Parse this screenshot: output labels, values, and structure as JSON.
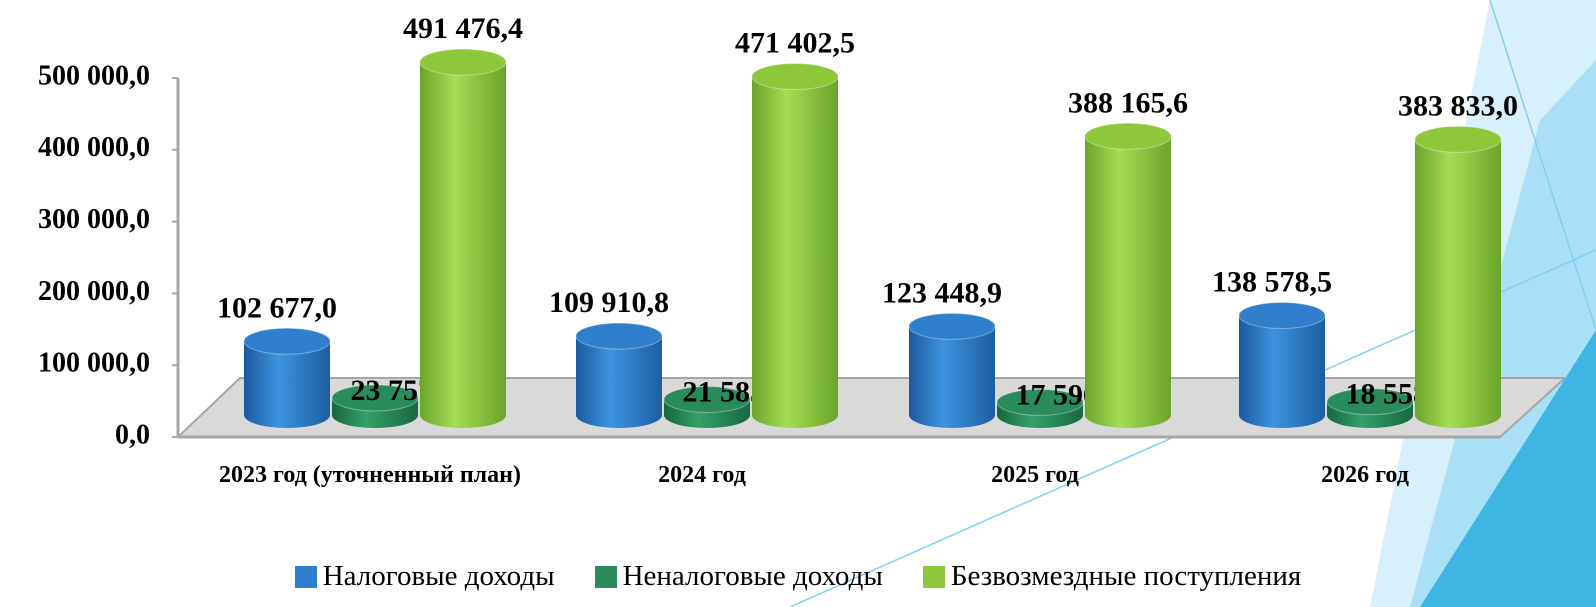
{
  "chart_data": {
    "type": "bar",
    "categories": [
      "2023 год (уточненный план)",
      "2024 год",
      "2025 год",
      "2026 год"
    ],
    "series": [
      {
        "name": "Налоговые доходы",
        "color": "#2f7fcc",
        "values": [
          102677.0,
          109910.8,
          123448.9,
          138578.5
        ],
        "value_labels": [
          "102 677,0",
          "109 910,8",
          "123 448,9",
          "138 578,5"
        ]
      },
      {
        "name": "Неналоговые доходы",
        "color": "#2a8c5c",
        "values": [
          23757.8,
          21585.4,
          17596.0,
          18558.8
        ],
        "value_labels": [
          "23 757,8",
          "21 585,4",
          "17 596,0",
          "18 558,8"
        ]
      },
      {
        "name": "Безвозмездные поступления",
        "color": "#8dc83c",
        "values": [
          491476.4,
          471402.5,
          388165.6,
          383833.0
        ],
        "value_labels": [
          "491 476,4",
          "471 402,5",
          "388 165,6",
          "383 833,0"
        ]
      }
    ],
    "ylim": [
      0,
      500000
    ],
    "yticks": [
      {
        "value": 0,
        "label": "0,0"
      },
      {
        "value": 100000,
        "label": "100 000,0"
      },
      {
        "value": 200000,
        "label": "200 000,0"
      },
      {
        "value": 300000,
        "label": "300 000,0"
      },
      {
        "value": 400000,
        "label": "400 000,0"
      },
      {
        "value": 500000,
        "label": "500 000,0"
      }
    ]
  }
}
